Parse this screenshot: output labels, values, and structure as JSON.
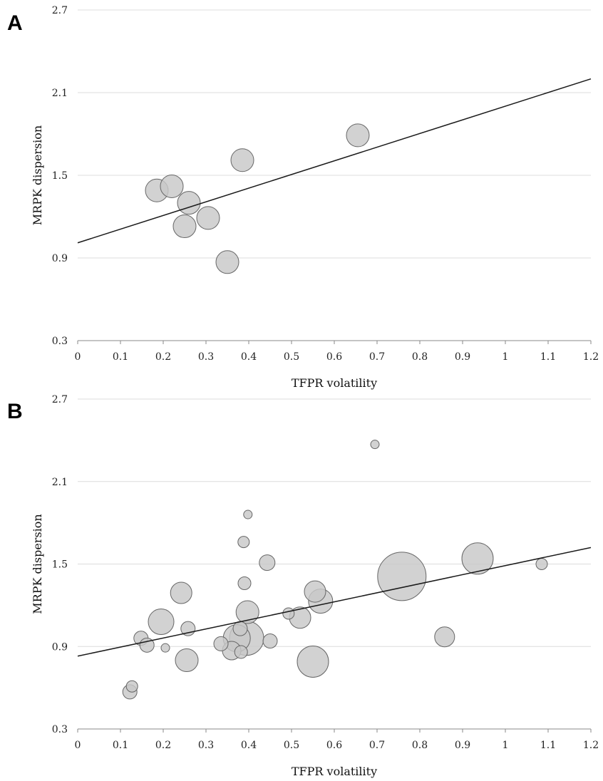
{
  "chart_data": [
    {
      "type": "scatter",
      "panel": "A",
      "xlabel": "TFPR volatility",
      "ylabel": "MRPK dispersion",
      "xlim": [
        0,
        1.2
      ],
      "ylim": [
        0.3,
        2.7
      ],
      "xticks": [
        "0",
        "0.1",
        "0.2",
        "0.3",
        "0.4",
        "0.5",
        "0.6",
        "0.7",
        "0.8",
        "0.9",
        "1",
        "1.1",
        "1.2"
      ],
      "yticks": [
        "0.3",
        "0.9",
        "1.5",
        "2.1",
        "2.7"
      ],
      "grid": true,
      "points": [
        {
          "x": 0.185,
          "y": 1.39,
          "size": 16
        },
        {
          "x": 0.22,
          "y": 1.42,
          "size": 16
        },
        {
          "x": 0.26,
          "y": 1.3,
          "size": 16
        },
        {
          "x": 0.25,
          "y": 1.13,
          "size": 16
        },
        {
          "x": 0.305,
          "y": 1.19,
          "size": 16
        },
        {
          "x": 0.35,
          "y": 0.87,
          "size": 16
        },
        {
          "x": 0.385,
          "y": 1.61,
          "size": 16
        },
        {
          "x": 0.655,
          "y": 1.79,
          "size": 16
        }
      ],
      "fit_line": {
        "x": [
          0,
          1.2
        ],
        "y": [
          1.01,
          2.2
        ]
      }
    },
    {
      "type": "scatter",
      "panel": "B",
      "xlabel": "TFPR volatility",
      "ylabel": "MRPK dispersion",
      "xlim": [
        0,
        1.2
      ],
      "ylim": [
        0.3,
        2.7
      ],
      "xticks": [
        "0",
        "0.1",
        "0.2",
        "0.3",
        "0.4",
        "0.5",
        "0.6",
        "0.7",
        "0.8",
        "0.9",
        "1",
        "1.1",
        "1.2"
      ],
      "yticks": [
        "0.3",
        "0.9",
        "1.5",
        "2.1",
        "2.7"
      ],
      "grid": true,
      "points": [
        {
          "x": 0.695,
          "y": 2.37,
          "size": 6
        },
        {
          "x": 0.398,
          "y": 1.86,
          "size": 6
        },
        {
          "x": 0.388,
          "y": 1.66,
          "size": 8
        },
        {
          "x": 0.443,
          "y": 1.51,
          "size": 11
        },
        {
          "x": 1.085,
          "y": 1.5,
          "size": 8
        },
        {
          "x": 0.935,
          "y": 1.54,
          "size": 22
        },
        {
          "x": 0.758,
          "y": 1.41,
          "size": 34
        },
        {
          "x": 0.39,
          "y": 1.36,
          "size": 9
        },
        {
          "x": 0.242,
          "y": 1.29,
          "size": 15
        },
        {
          "x": 0.555,
          "y": 1.3,
          "size": 15
        },
        {
          "x": 0.568,
          "y": 1.23,
          "size": 17
        },
        {
          "x": 0.397,
          "y": 1.15,
          "size": 16
        },
        {
          "x": 0.493,
          "y": 1.14,
          "size": 8
        },
        {
          "x": 0.52,
          "y": 1.11,
          "size": 15
        },
        {
          "x": 0.195,
          "y": 1.08,
          "size": 18
        },
        {
          "x": 0.258,
          "y": 1.03,
          "size": 10
        },
        {
          "x": 0.38,
          "y": 1.03,
          "size": 10
        },
        {
          "x": 0.148,
          "y": 0.96,
          "size": 10
        },
        {
          "x": 0.372,
          "y": 0.96,
          "size": 19
        },
        {
          "x": 0.395,
          "y": 0.96,
          "size": 24
        },
        {
          "x": 0.45,
          "y": 0.94,
          "size": 10
        },
        {
          "x": 0.858,
          "y": 0.97,
          "size": 14
        },
        {
          "x": 0.162,
          "y": 0.91,
          "size": 10
        },
        {
          "x": 0.335,
          "y": 0.92,
          "size": 10
        },
        {
          "x": 0.205,
          "y": 0.89,
          "size": 6
        },
        {
          "x": 0.36,
          "y": 0.87,
          "size": 13
        },
        {
          "x": 0.382,
          "y": 0.86,
          "size": 9
        },
        {
          "x": 0.255,
          "y": 0.8,
          "size": 16
        },
        {
          "x": 0.55,
          "y": 0.79,
          "size": 22
        },
        {
          "x": 0.127,
          "y": 0.61,
          "size": 8
        },
        {
          "x": 0.122,
          "y": 0.57,
          "size": 10
        }
      ],
      "fit_line": {
        "x": [
          0,
          1.2
        ],
        "y": [
          0.83,
          1.62
        ]
      }
    }
  ]
}
